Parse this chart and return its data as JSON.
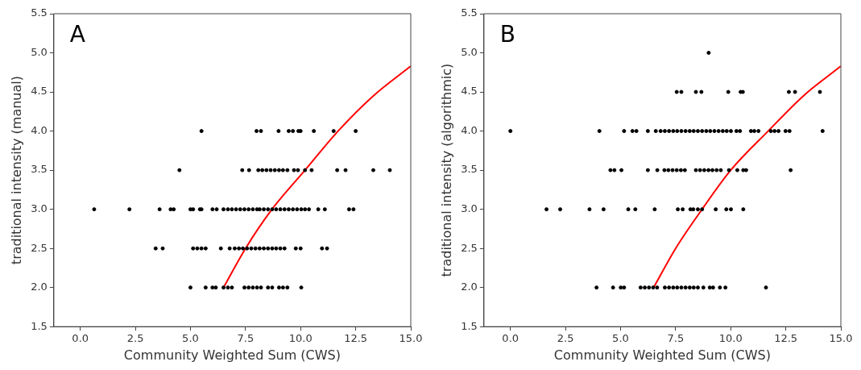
{
  "chart_data": [
    {
      "type": "scatter",
      "xlabel": "Community Weighted Sum (CWS)",
      "ylabel": "traditional intensity (manual)",
      "annotations": [
        "A"
      ],
      "grid": false,
      "legend": false,
      "marker": "circle",
      "xlim": [
        -1.2,
        15
      ],
      "xticks": [
        {
          "value": 0,
          "label": "0.0"
        },
        {
          "value": 2.5,
          "label": "2.5"
        },
        {
          "value": 5,
          "label": "5.0"
        },
        {
          "value": 7.5,
          "label": "7.5"
        },
        {
          "value": 10,
          "label": "10.0"
        },
        {
          "value": 12.5,
          "label": "12.5"
        },
        {
          "value": 15,
          "label": "15.0"
        }
      ],
      "ylim": [
        1.5,
        5.5
      ],
      "yticks": [
        {
          "value": 1.5,
          "label": "1.5"
        },
        {
          "value": 2,
          "label": "2.0"
        },
        {
          "value": 2.5,
          "label": "2.5"
        },
        {
          "value": 3,
          "label": "3.0"
        },
        {
          "value": 3.5,
          "label": "3.5"
        },
        {
          "value": 4,
          "label": "4.0"
        },
        {
          "value": 4.5,
          "label": "4.5"
        },
        {
          "value": 5,
          "label": "5.0"
        },
        {
          "value": 5.5,
          "label": "5.5"
        }
      ],
      "series": [
        {
          "type": "scatter",
          "color": "#000000",
          "x": [
            5.5,
            8.0,
            8.2,
            9.0,
            9.46,
            9.65,
            9.9,
            10.0,
            10.6,
            11.5,
            12.5,
            4.5,
            7.35,
            7.66,
            8.08,
            8.26,
            8.45,
            8.64,
            8.83,
            9.02,
            9.2,
            9.4,
            9.7,
            9.88,
            10.2,
            10.5,
            11.66,
            12.04,
            13.3,
            14.05,
            0.63,
            2.23,
            3.6,
            4.1,
            4.24,
            5.0,
            5.12,
            5.43,
            5.5,
            6.0,
            6.19,
            6.5,
            6.7,
            6.88,
            7.07,
            7.26,
            7.45,
            7.64,
            7.83,
            8.02,
            8.14,
            8.33,
            8.52,
            8.71,
            8.89,
            9.08,
            9.27,
            9.46,
            9.65,
            9.84,
            10.03,
            10.2,
            10.38,
            10.8,
            11.1,
            12.2,
            12.4,
            3.42,
            3.74,
            5.12,
            5.31,
            5.5,
            5.69,
            6.38,
            6.78,
            7.01,
            7.2,
            7.38,
            7.57,
            7.76,
            7.95,
            8.14,
            8.33,
            8.52,
            8.71,
            8.89,
            9.08,
            9.27,
            9.78,
            10.0,
            10.97,
            11.2,
            5.0,
            5.69,
            6.0,
            6.15,
            6.5,
            6.7,
            6.88,
            7.45,
            7.64,
            7.83,
            8.02,
            8.2,
            8.52,
            8.71,
            9.02,
            9.2,
            9.4,
            10.03
          ],
          "values": [
            4,
            4,
            4,
            4,
            4,
            4,
            4,
            4,
            4,
            4,
            4,
            3.5,
            3.5,
            3.5,
            3.5,
            3.5,
            3.5,
            3.5,
            3.5,
            3.5,
            3.5,
            3.5,
            3.5,
            3.5,
            3.5,
            3.5,
            3.5,
            3.5,
            3.5,
            3.5,
            3,
            3,
            3,
            3,
            3,
            3,
            3,
            3,
            3,
            3,
            3,
            3,
            3,
            3,
            3,
            3,
            3,
            3,
            3,
            3,
            3,
            3,
            3,
            3,
            3,
            3,
            3,
            3,
            3,
            3,
            3,
            3,
            3,
            3,
            3,
            3,
            3,
            2.5,
            2.5,
            2.5,
            2.5,
            2.5,
            2.5,
            2.5,
            2.5,
            2.5,
            2.5,
            2.5,
            2.5,
            2.5,
            2.5,
            2.5,
            2.5,
            2.5,
            2.5,
            2.5,
            2.5,
            2.5,
            2.5,
            2.5,
            2.5,
            2.5,
            2,
            2,
            2,
            2,
            2,
            2,
            2,
            2,
            2,
            2,
            2,
            2,
            2,
            2,
            2,
            2,
            2,
            2
          ]
        },
        {
          "type": "line",
          "color": "#ff0000",
          "marker": "none",
          "line_style": "solid",
          "x": [
            6.5,
            7.5,
            8.7,
            10.2,
            11.7,
            13.3,
            15
          ],
          "values": [
            2.0,
            2.5,
            3.0,
            3.5,
            4.0,
            4.45,
            4.83
          ]
        }
      ]
    },
    {
      "type": "scatter",
      "xlabel": "Community Weighted Sum (CWS)",
      "ylabel": "traditional intensity (algorithmic)",
      "annotations": [
        "B"
      ],
      "grid": false,
      "legend": false,
      "marker": "circle",
      "xlim": [
        -1.2,
        15
      ],
      "xticks": [
        {
          "value": 0,
          "label": "0.0"
        },
        {
          "value": 2.5,
          "label": "2.5"
        },
        {
          "value": 5,
          "label": "5.0"
        },
        {
          "value": 7.5,
          "label": "7.5"
        },
        {
          "value": 10,
          "label": "10.0"
        },
        {
          "value": 12.5,
          "label": "12.5"
        },
        {
          "value": 15,
          "label": "15.0"
        }
      ],
      "ylim": [
        1.5,
        5.5
      ],
      "yticks": [
        {
          "value": 1.5,
          "label": "1.5"
        },
        {
          "value": 2,
          "label": "2.0"
        },
        {
          "value": 2.5,
          "label": "2.5"
        },
        {
          "value": 3,
          "label": "3.0"
        },
        {
          "value": 3.5,
          "label": "3.5"
        },
        {
          "value": 4,
          "label": "4.0"
        },
        {
          "value": 4.5,
          "label": "4.5"
        },
        {
          "value": 5,
          "label": "5.0"
        },
        {
          "value": 5.5,
          "label": "5.5"
        }
      ],
      "series": [
        {
          "type": "scatter",
          "color": "#000000",
          "x": [
            9.0,
            7.55,
            7.76,
            8.42,
            8.67,
            9.89,
            10.45,
            10.55,
            12.64,
            12.92,
            14.05,
            0.0,
            4.04,
            5.16,
            5.54,
            5.72,
            6.24,
            6.6,
            6.82,
            7.01,
            7.2,
            7.39,
            7.57,
            7.76,
            7.95,
            8.14,
            8.32,
            8.51,
            8.7,
            8.89,
            9.07,
            9.26,
            9.45,
            9.64,
            9.82,
            10.01,
            10.26,
            10.42,
            10.92,
            11.07,
            11.26,
            11.82,
            11.99,
            12.17,
            12.49,
            12.67,
            14.17,
            4.54,
            4.72,
            5.04,
            6.24,
            6.67,
            6.99,
            7.17,
            7.36,
            7.55,
            7.74,
            7.92,
            8.42,
            8.61,
            8.8,
            8.99,
            9.17,
            9.36,
            9.55,
            9.92,
            10.3,
            10.57,
            10.7,
            12.72,
            1.64,
            2.26,
            3.59,
            4.23,
            5.35,
            5.67,
            6.55,
            7.6,
            7.82,
            8.17,
            8.3,
            8.51,
            8.7,
            9.32,
            9.8,
            10.01,
            10.57,
            3.91,
            4.66,
            5.01,
            5.16,
            5.91,
            6.1,
            6.29,
            6.48,
            6.66,
            7.01,
            7.2,
            7.39,
            7.57,
            7.76,
            7.95,
            8.14,
            8.32,
            8.51,
            8.76,
            9.05,
            9.2,
            9.51,
            9.76,
            11.6
          ],
          "values": [
            5,
            4.5,
            4.5,
            4.5,
            4.5,
            4.5,
            4.5,
            4.5,
            4.5,
            4.5,
            4.5,
            4,
            4,
            4,
            4,
            4,
            4,
            4,
            4,
            4,
            4,
            4,
            4,
            4,
            4,
            4,
            4,
            4,
            4,
            4,
            4,
            4,
            4,
            4,
            4,
            4,
            4,
            4,
            4,
            4,
            4,
            4,
            4,
            4,
            4,
            4,
            4,
            3.5,
            3.5,
            3.5,
            3.5,
            3.5,
            3.5,
            3.5,
            3.5,
            3.5,
            3.5,
            3.5,
            3.5,
            3.5,
            3.5,
            3.5,
            3.5,
            3.5,
            3.5,
            3.5,
            3.5,
            3.5,
            3.5,
            3.5,
            3,
            3,
            3,
            3,
            3,
            3,
            3,
            3,
            3,
            3,
            3,
            3,
            3,
            3,
            3,
            3,
            3,
            2,
            2,
            2,
            2,
            2,
            2,
            2,
            2,
            2,
            2,
            2,
            2,
            2,
            2,
            2,
            2,
            2,
            2,
            2,
            2,
            2,
            2,
            2,
            2
          ]
        },
        {
          "type": "line",
          "color": "#ff0000",
          "marker": "none",
          "line_style": "solid",
          "x": [
            6.5,
            7.5,
            8.7,
            10.0,
            11.7,
            13.3,
            15
          ],
          "values": [
            2.0,
            2.5,
            3.0,
            3.5,
            4.0,
            4.45,
            4.83
          ]
        }
      ]
    }
  ]
}
